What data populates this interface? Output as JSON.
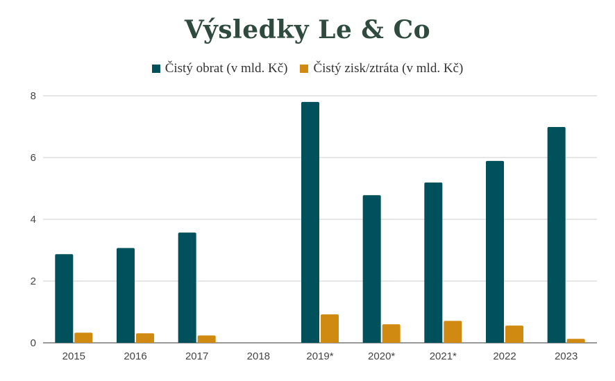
{
  "chart_data": {
    "type": "bar",
    "title": "Výsledky Le & Co",
    "categories": [
      "2015",
      "2016",
      "2017",
      "2018",
      "2019*",
      "2020*",
      "2021*",
      "2022",
      "2023"
    ],
    "series": [
      {
        "name": "Čistý obrat (v mld. Kč)",
        "color": "#00515b",
        "values": [
          2.87,
          3.07,
          3.57,
          null,
          7.8,
          4.78,
          5.19,
          5.89,
          6.99
        ]
      },
      {
        "name": "Čistý zisk/ztráta (v mld. Kč)",
        "color": "#d08a12",
        "values": [
          0.33,
          0.31,
          0.24,
          null,
          0.92,
          0.6,
          0.71,
          0.56,
          0.13
        ]
      }
    ],
    "yticks": [
      "0",
      "2",
      "4",
      "6",
      "8"
    ],
    "ylim": [
      0,
      8
    ],
    "xlabel": "",
    "ylabel": "",
    "grid": true,
    "legend_position": "top-center"
  }
}
